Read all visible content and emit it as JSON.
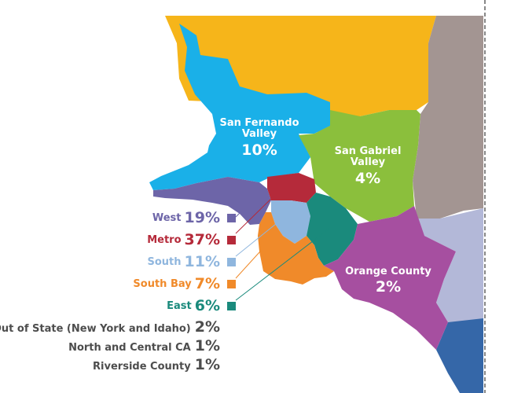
{
  "regions": [
    {
      "id": "san-fernando-valley",
      "name": "San Fernando\nValley",
      "name_line1": "San Fernando",
      "name_line2": "Valley",
      "percent": "10%",
      "color": "#1ab0e8"
    },
    {
      "id": "san-gabriel-valley",
      "name_line1": "San Gabriel",
      "name_line2": "Valley",
      "percent": "4%",
      "color": "#8bbf3c"
    },
    {
      "id": "orange-county",
      "name_line1": "Orange County",
      "percent": "2%",
      "color": "#a64fa0"
    }
  ],
  "legend": [
    {
      "name": "West",
      "percent": "19%",
      "color": "#6d65a8"
    },
    {
      "name": "Metro",
      "percent": "37%",
      "color": "#b52a3a"
    },
    {
      "name": "South",
      "percent": "11%",
      "color": "#8fb6de"
    },
    {
      "name": "South Bay",
      "percent": "7%",
      "color": "#f08a2a"
    },
    {
      "name": "East",
      "percent": "6%",
      "color": "#1a8a7c"
    }
  ],
  "other_regions": [
    {
      "name": "Out of State (New York and Idaho)",
      "percent": "2%"
    },
    {
      "name": "North and Central CA",
      "percent": "1%"
    },
    {
      "name": "Riverside County",
      "percent": "1%"
    }
  ],
  "colors": {
    "north_area": "#f6b51a",
    "east_area": "#a39592",
    "riverside_area": "#b3b8d8",
    "south_strip": "#3567a8",
    "text_gray": "#4d4d4d"
  }
}
